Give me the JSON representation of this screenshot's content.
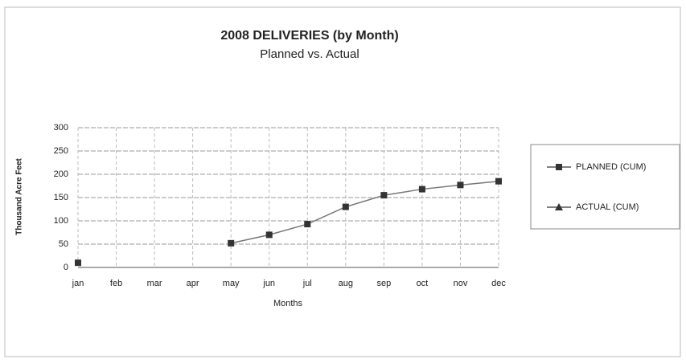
{
  "chart_data": {
    "type": "line",
    "title": "2008 DELIVERIES (by Month)",
    "subtitle": "Planned vs. Actual",
    "x_label": "Months",
    "y_label": "Thousand Acre Feet",
    "categories": [
      "jan",
      "feb",
      "mar",
      "apr",
      "may",
      "jun",
      "jul",
      "aug",
      "sep",
      "oct",
      "nov",
      "dec"
    ],
    "series": [
      {
        "name": "PLANNED (CUM)",
        "color": "#333333",
        "marker": "square",
        "values": [
          10,
          null,
          null,
          null,
          52,
          70,
          93,
          130,
          155,
          168,
          177,
          185
        ]
      },
      {
        "name": "ACTUAL (CUM)",
        "color": "#333333",
        "marker": "triangle",
        "values": [
          null,
          null,
          null,
          null,
          null,
          null,
          null,
          null,
          null,
          null,
          null,
          null
        ]
      }
    ],
    "ylim": [
      0,
      300
    ],
    "yticks": [
      0,
      50,
      100,
      150,
      200,
      250,
      300
    ],
    "grid": true
  }
}
